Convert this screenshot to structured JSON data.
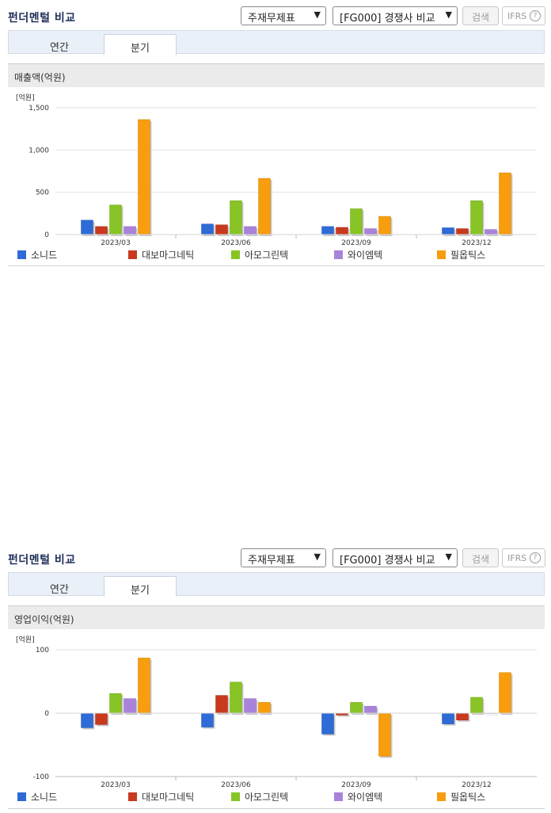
{
  "panels": [
    {
      "title": "펀더멘털 비교",
      "select1": "주재무제표",
      "select2": "[FG000] 경쟁사 비교",
      "search_label": "검색",
      "ifrs_label": "IFRS",
      "help_glyph": "?",
      "tabs": [
        {
          "label": "연간",
          "active": false
        },
        {
          "label": "분기",
          "active": true
        }
      ],
      "metric_label": "매출액(억원)",
      "unit_label": "[억원]",
      "legend": [
        "소니드",
        "대보마그네틱",
        "아모그린텍",
        "와이엠텍",
        "필옵틱스"
      ],
      "chart_data": {
        "type": "bar",
        "categories": [
          "2023/03",
          "2023/06",
          "2023/09",
          "2023/12"
        ],
        "series": [
          {
            "name": "소니드",
            "values": [
              170,
              125,
              95,
              80
            ]
          },
          {
            "name": "대보마그네틱",
            "values": [
              95,
              115,
              85,
              70
            ]
          },
          {
            "name": "아모그린텍",
            "values": [
              350,
              400,
              305,
              400
            ]
          },
          {
            "name": "와이엠텍",
            "values": [
              95,
              95,
              70,
              60
            ]
          },
          {
            "name": "필옵틱스",
            "values": [
              1360,
              665,
              215,
              730
            ]
          }
        ],
        "ylim": [
          0,
          1500
        ],
        "yticks": [
          0,
          500,
          1000,
          1500
        ],
        "ytick_labels": [
          "0",
          "500",
          "1,000",
          "1,500"
        ]
      }
    },
    {
      "title": "펀더멘털 비교",
      "select1": "주재무제표",
      "select2": "[FG000] 경쟁사 비교",
      "search_label": "검색",
      "ifrs_label": "IFRS",
      "help_glyph": "?",
      "tabs": [
        {
          "label": "연간",
          "active": false
        },
        {
          "label": "분기",
          "active": true
        }
      ],
      "metric_label": "영업이익(억원)",
      "unit_label": "[억원]",
      "legend": [
        "소니드",
        "대보마그네틱",
        "아모그린텍",
        "와이엠텍",
        "필옵틱스"
      ],
      "chart_data": {
        "type": "bar",
        "categories": [
          "2023/03",
          "2023/06",
          "2023/09",
          "2023/12"
        ],
        "series": [
          {
            "name": "소니드",
            "values": [
              -23,
              -22,
              -33,
              -17
            ]
          },
          {
            "name": "대보마그네틱",
            "values": [
              -18,
              28,
              -3,
              -11
            ]
          },
          {
            "name": "아모그린텍",
            "values": [
              31,
              49,
              17,
              25
            ]
          },
          {
            "name": "와이엠텍",
            "values": [
              23,
              23,
              11,
              0
            ]
          },
          {
            "name": "필옵틱스",
            "values": [
              87,
              17,
              -68,
              64
            ]
          }
        ],
        "ylim": [
          -100,
          100
        ],
        "yticks": [
          -100,
          0,
          100
        ],
        "ytick_labels": [
          "-100",
          "0",
          "100"
        ]
      }
    }
  ],
  "colors": [
    "#2e6bd6",
    "#c8391e",
    "#88c425",
    "#a983da",
    "#f79d0e"
  ]
}
